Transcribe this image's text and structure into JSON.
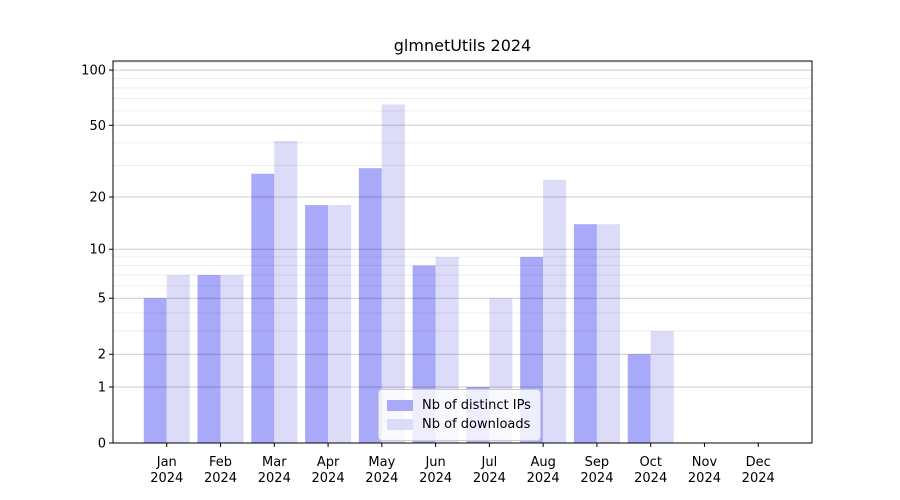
{
  "title": "glmnetUtils 2024",
  "legend": {
    "items": [
      {
        "label": "Nb of distinct IPs",
        "color": "#a9a9f9"
      },
      {
        "label": "Nb of downloads",
        "color": "#dcdcf9"
      }
    ]
  },
  "colors": {
    "bar_distinct_ips": "#a9a9f9",
    "bar_downloads": "#dcdcf9",
    "grid_major": "rgba(0,0,0,0.20)",
    "grid_minor": "rgba(0,0,0,0.07)",
    "axis": "#000000",
    "text": "#000000",
    "legend_border": "#cccccc"
  },
  "chart_data": {
    "type": "bar",
    "title": "glmnetUtils 2024",
    "categories": [
      "Jan 2024",
      "Feb 2024",
      "Mar 2024",
      "Apr 2024",
      "May 2024",
      "Jun 2024",
      "Jul 2024",
      "Aug 2024",
      "Sep 2024",
      "Oct 2024",
      "Nov 2024",
      "Dec 2024"
    ],
    "series": [
      {
        "name": "Nb of distinct IPs",
        "color": "#a9a9f9",
        "values": [
          5,
          7,
          27,
          18,
          29,
          8,
          1,
          9,
          14,
          2,
          0,
          0
        ]
      },
      {
        "name": "Nb of downloads",
        "color": "#dcdcf9",
        "values": [
          7,
          7,
          41,
          18,
          65,
          9,
          5,
          25,
          14,
          3,
          0,
          0
        ]
      }
    ],
    "xlabel": "",
    "ylabel": "",
    "yscale": "log1p",
    "ylim": [
      0,
      112
    ],
    "yticks": [
      0,
      1,
      2,
      5,
      10,
      20,
      50,
      100
    ],
    "yticks_minor": [
      3,
      4,
      6,
      7,
      8,
      9,
      30,
      40,
      60,
      70,
      80,
      90,
      110
    ],
    "grid": true,
    "legend_position": "lower-center-inside"
  }
}
